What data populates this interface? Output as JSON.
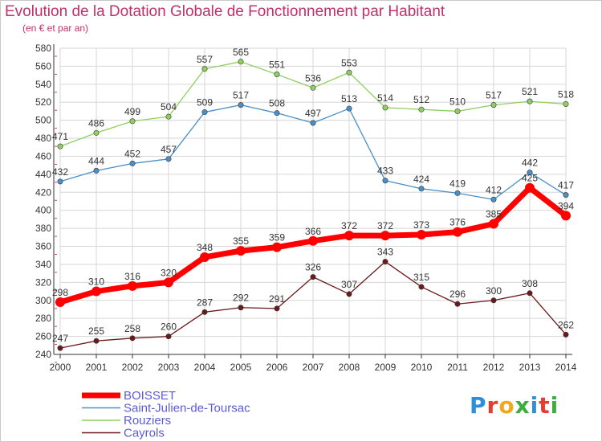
{
  "title": "Evolution de la Dotation Globale de Fonctionnement par Habitant",
  "subtitle": "(en € et par an)",
  "logo": {
    "text": "Proxiti",
    "colors": [
      "#2f8fd8",
      "#e63b2e",
      "#f2a81d",
      "#3cae3c",
      "#2f8fd8",
      "#e63b2e",
      "#3cae3c"
    ]
  },
  "colors": {
    "title": "#c0306a",
    "grid": "#d6d6d6",
    "axis": "#333333",
    "tick_mark": "#d04070"
  },
  "chart_data": {
    "type": "line",
    "x": [
      2000,
      2001,
      2002,
      2003,
      2004,
      2005,
      2006,
      2007,
      2008,
      2009,
      2010,
      2011,
      2012,
      2013,
      2014
    ],
    "ylim": [
      240,
      580
    ],
    "ytick_step": 20,
    "grid": true,
    "legend_position": "bottom-left",
    "series": [
      {
        "name": "BOISSET",
        "color": "#ff0000",
        "highlight": true,
        "values": [
          298,
          310,
          316,
          320,
          348,
          355,
          359,
          366,
          372,
          372,
          373,
          376,
          385,
          425,
          394
        ]
      },
      {
        "name": "Saint-Julien-de-Toursac",
        "color": "#4a90c8",
        "highlight": false,
        "values": [
          432,
          444,
          452,
          457,
          509,
          517,
          508,
          497,
          513,
          433,
          424,
          419,
          412,
          442,
          417
        ]
      },
      {
        "name": "Rouziers",
        "color": "#8ed060",
        "highlight": false,
        "values": [
          471,
          486,
          499,
          504,
          557,
          565,
          551,
          536,
          553,
          514,
          512,
          510,
          517,
          521,
          518
        ]
      },
      {
        "name": "Cayrols",
        "color": "#6b1a1a",
        "highlight": false,
        "values": [
          247,
          255,
          258,
          260,
          287,
          292,
          291,
          326,
          307,
          343,
          315,
          296,
          300,
          308,
          262
        ]
      }
    ]
  }
}
